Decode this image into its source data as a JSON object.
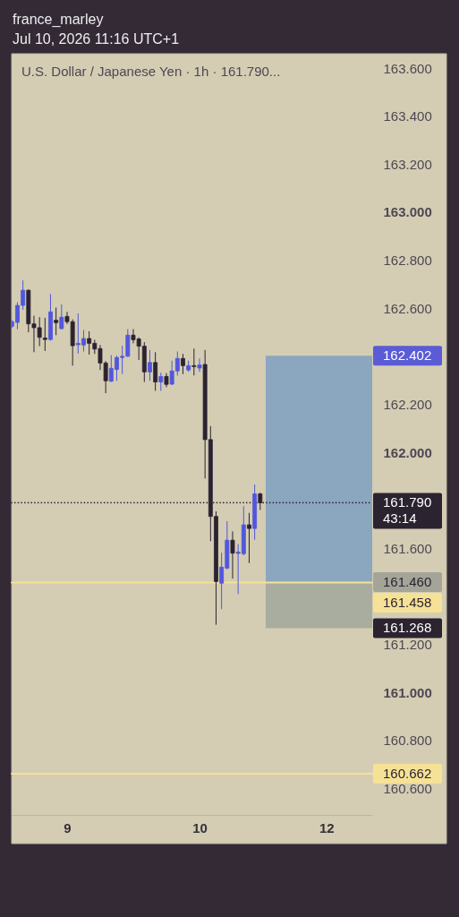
{
  "chart_data": {
    "type": "candlestick",
    "title": "U.S. Dollar / Japanese Yen · 1h · 161.790...",
    "annotations": [
      "france_marley",
      "Jul 10, 2026 11:16 UTC+1",
      "161.460"
    ],
    "categories": [
      null,
      null,
      null,
      null,
      null,
      null,
      null,
      null,
      null,
      null,
      "9",
      null,
      null,
      null,
      null,
      null,
      null,
      null,
      null,
      null,
      null,
      null,
      null,
      null,
      null,
      null,
      null,
      null,
      null,
      null,
      null,
      null,
      null,
      null,
      "10",
      null,
      null,
      null,
      null,
      null,
      null,
      null,
      null,
      null,
      null,
      null,
      null,
      null,
      null,
      null,
      null,
      null,
      null,
      null,
      null,
      null,
      null,
      "12",
      null,
      null,
      null,
      null,
      null,
      null,
      null,
      null
    ],
    "ohlc": [
      [
        162.525,
        162.551,
        162.518,
        162.544
      ],
      [
        162.541,
        162.625,
        162.513,
        162.612
      ],
      [
        162.612,
        162.716,
        162.594,
        162.675
      ],
      [
        162.675,
        162.678,
        162.5,
        162.535
      ],
      [
        162.535,
        162.569,
        162.417,
        162.519
      ],
      [
        162.519,
        162.563,
        162.442,
        162.479
      ],
      [
        162.476,
        162.56,
        162.422,
        162.47
      ],
      [
        162.47,
        162.659,
        162.465,
        162.585
      ],
      [
        162.55,
        162.603,
        162.488,
        162.54
      ],
      [
        162.515,
        162.616,
        162.513,
        162.563
      ],
      [
        162.566,
        162.585,
        162.534,
        162.544
      ],
      [
        162.544,
        162.554,
        162.361,
        162.444
      ],
      [
        162.448,
        162.578,
        162.411,
        162.454
      ],
      [
        162.447,
        162.509,
        162.42,
        162.474
      ],
      [
        162.474,
        162.504,
        162.407,
        162.454
      ],
      [
        162.454,
        162.469,
        162.41,
        162.43
      ],
      [
        162.432,
        162.447,
        162.343,
        162.372
      ],
      [
        162.372,
        162.38,
        162.246,
        162.298
      ],
      [
        162.296,
        162.405,
        162.293,
        162.35
      ],
      [
        162.345,
        162.403,
        162.298,
        162.395
      ],
      [
        162.395,
        162.444,
        162.326,
        162.4
      ],
      [
        162.4,
        162.513,
        162.397,
        162.488
      ],
      [
        162.488,
        162.513,
        162.454,
        162.469
      ],
      [
        162.472,
        162.479,
        162.385,
        162.442
      ],
      [
        162.442,
        162.459,
        162.293,
        162.335
      ],
      [
        162.335,
        162.426,
        162.298,
        162.374
      ],
      [
        162.374,
        162.417,
        162.256,
        162.293
      ],
      [
        162.293,
        162.332,
        162.256,
        162.316
      ],
      [
        162.316,
        162.33,
        162.271,
        162.283
      ],
      [
        162.284,
        162.382,
        162.28,
        162.339
      ],
      [
        162.339,
        162.42,
        162.32,
        162.391
      ],
      [
        162.391,
        162.41,
        162.326,
        162.361
      ],
      [
        162.343,
        162.382,
        162.335,
        162.361
      ],
      [
        162.361,
        162.432,
        162.32,
        162.357
      ],
      [
        162.351,
        162.391,
        162.335,
        162.364
      ],
      [
        162.366,
        162.426,
        161.891,
        162.053
      ],
      [
        162.053,
        162.109,
        161.63,
        161.733
      ],
      [
        161.733,
        161.754,
        161.282,
        161.462
      ],
      [
        161.455,
        161.582,
        161.347,
        161.522
      ],
      [
        161.518,
        161.713,
        161.512,
        161.634
      ],
      [
        161.634,
        161.671,
        161.474,
        161.58
      ],
      [
        161.579,
        161.618,
        161.41,
        161.585
      ],
      [
        161.578,
        161.776,
        161.571,
        161.698
      ],
      [
        161.698,
        161.748,
        161.539,
        161.683
      ],
      [
        161.683,
        161.866,
        161.636,
        161.827
      ],
      [
        161.827,
        161.832,
        161.76,
        161.79
      ],
      null,
      null,
      null,
      null,
      null,
      null,
      null,
      null,
      null,
      null,
      null,
      null,
      null,
      null,
      null,
      null,
      null,
      null,
      null,
      null
    ],
    "colors": [
      "#5157dd",
      "#5157dd",
      "#5157dd",
      "#2b2330",
      "#2b2330",
      "#2b2330",
      "#2b2330",
      "#5157dd",
      "#2b2330",
      "#5157dd",
      "#2b2330",
      "#2b2330",
      "#5157dd",
      "#5157dd",
      "#2b2330",
      "#2b2330",
      "#2b2330",
      "#2b2330",
      "#5157dd",
      "#5157dd",
      "#5157dd",
      "#5157dd",
      "#2b2330",
      "#2b2330",
      "#2b2330",
      "#5157dd",
      "#2b2330",
      "#5157dd",
      "#2b2330",
      "#5157dd",
      "#5157dd",
      "#2b2330",
      "#5157dd",
      "#2b2330",
      "#5157dd",
      "#2b2330",
      "#2b2330",
      "#2b2330",
      "#5157dd",
      "#5157dd",
      "#2b2330",
      "#5157dd",
      "#5157dd",
      "#2b2330",
      "#5157dd",
      "#2b2330",
      null,
      null,
      null,
      null,
      null,
      null,
      null,
      null,
      null,
      null,
      null,
      null,
      null,
      null,
      null,
      null,
      null,
      null,
      null,
      null
    ],
    "ylim": [
      160.49,
      163.66
    ],
    "yticks": [
      {
        "value": 163.6,
        "label": "163.600"
      },
      {
        "value": 163.4,
        "label": "163.400"
      },
      {
        "value": 163.2,
        "label": "163.200"
      },
      {
        "value": 163,
        "label": "163.000"
      },
      {
        "value": 162.8,
        "label": "162.800"
      },
      {
        "value": 162.6,
        "label": "162.600"
      },
      {
        "value": 162.2,
        "label": "162.200"
      },
      {
        "value": 162,
        "label": "162.000"
      },
      {
        "value": 161.6,
        "label": "161.600"
      },
      {
        "value": 161.2,
        "label": "161.200"
      },
      {
        "value": 161,
        "label": "161.000"
      },
      {
        "value": 160.8,
        "label": "160.800"
      },
      {
        "value": 160.6,
        "label": "160.600"
      }
    ],
    "ref_lines": [
      {
        "axis": "y",
        "value": 161.79,
        "label": "161.790\n43:14",
        "color": "#2b2330",
        "line_style": "dotted"
      },
      {
        "axis": "y",
        "value": 161.458,
        "label": "161.458",
        "color": "#f6e296"
      },
      {
        "axis": "y",
        "value": 160.662,
        "label": "160.662",
        "color": "#f6e296"
      }
    ],
    "bands": [
      {
        "axis": "y",
        "from": 161.46,
        "to": 162.402,
        "label": "162.402",
        "color": "#8ba6bf"
      },
      {
        "axis": "y",
        "from": 161.46,
        "to": 161.268,
        "label": "161.268",
        "color": "#a9ad9f"
      }
    ],
    "grid": false
  }
}
